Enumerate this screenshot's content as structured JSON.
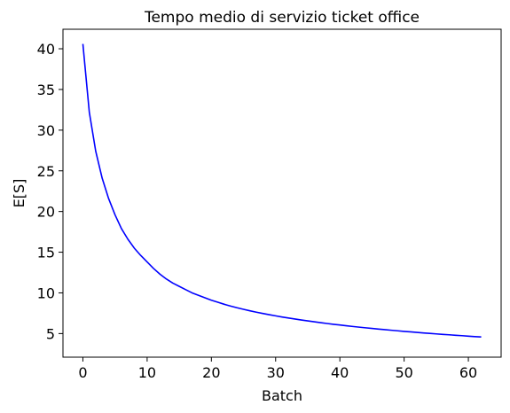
{
  "chart_data": {
    "type": "line",
    "title": "Tempo medio di servizio ticket office",
    "xlabel": "Batch",
    "ylabel": "E[S]",
    "xlim": [
      -3.1,
      65.1
    ],
    "ylim": [
      2.1,
      42.4
    ],
    "xticks": [
      0,
      10,
      20,
      30,
      40,
      50,
      60
    ],
    "yticks": [
      5,
      10,
      15,
      20,
      25,
      30,
      35,
      40
    ],
    "grid": false,
    "legend": "none",
    "series": [
      {
        "color": "#0000ff",
        "x": [
          0,
          1,
          2,
          3,
          4,
          5,
          6,
          7,
          8,
          9,
          10,
          11,
          12,
          13,
          14,
          15,
          16,
          17,
          18,
          19,
          20,
          21,
          22,
          23,
          24,
          25,
          26,
          27,
          28,
          29,
          30,
          31,
          32,
          33,
          34,
          35,
          36,
          37,
          38,
          39,
          40,
          41,
          42,
          43,
          44,
          45,
          46,
          47,
          48,
          49,
          50,
          51,
          52,
          53,
          54,
          55,
          56,
          57,
          58,
          59,
          60,
          61,
          62
        ],
        "y": [
          40.6,
          32.2,
          27.4,
          24.1,
          21.6,
          19.6,
          17.9,
          16.6,
          15.5,
          14.6,
          13.8,
          13.0,
          12.3,
          11.7,
          11.2,
          10.8,
          10.4,
          10.0,
          9.7,
          9.4,
          9.1,
          8.85,
          8.6,
          8.38,
          8.17,
          7.98,
          7.8,
          7.63,
          7.47,
          7.32,
          7.18,
          7.04,
          6.91,
          6.79,
          6.67,
          6.56,
          6.45,
          6.34,
          6.24,
          6.14,
          6.05,
          5.96,
          5.87,
          5.79,
          5.71,
          5.63,
          5.55,
          5.48,
          5.41,
          5.34,
          5.27,
          5.21,
          5.14,
          5.08,
          5.02,
          4.96,
          4.9,
          4.85,
          4.79,
          4.74,
          4.68,
          4.63,
          4.58
        ]
      }
    ]
  }
}
